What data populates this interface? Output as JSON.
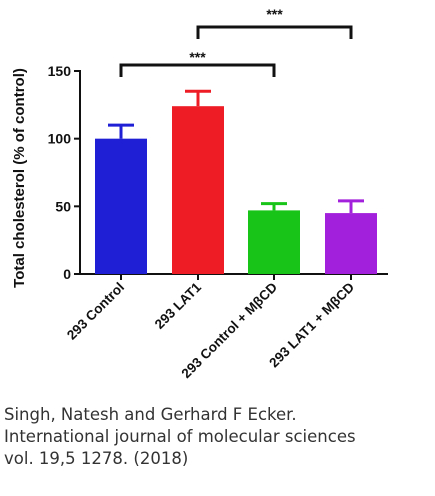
{
  "chart_data": {
    "type": "bar",
    "title": "",
    "xlabel": "",
    "ylabel": "Total cholesterol (% of control)",
    "ylim": [
      0,
      150
    ],
    "yticks": [
      0,
      50,
      100,
      150
    ],
    "categories": [
      "293 Control",
      "293 LAT1",
      "293 Control + MβCD",
      "293 LAT1 + MβCD"
    ],
    "values": [
      100,
      124,
      47,
      45
    ],
    "errors": [
      10,
      11,
      5,
      9
    ],
    "colors": [
      "#1f1fd6",
      "#ee1c25",
      "#17c417",
      "#a21fdb"
    ],
    "grid": false,
    "legend": "none",
    "significance": [
      {
        "from": 0,
        "to": 2,
        "label": "***"
      },
      {
        "from": 1,
        "to": 3,
        "label": "***"
      }
    ]
  },
  "citation": {
    "line1": "Singh, Natesh and Gerhard F Ecker.",
    "line2": "International journal of molecular sciences",
    "line3": "vol. 19,5 1278. (2018)"
  }
}
